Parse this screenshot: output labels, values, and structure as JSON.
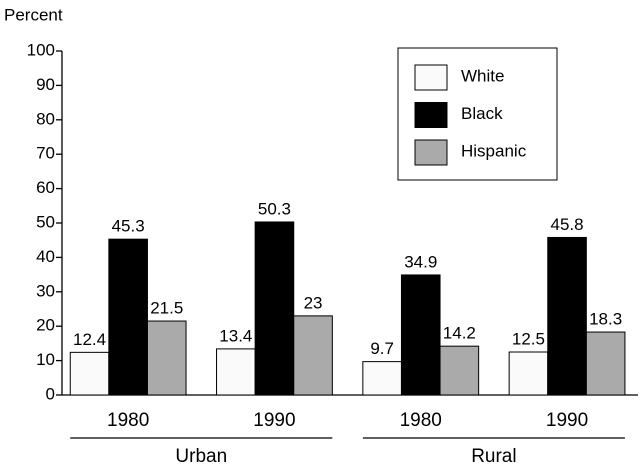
{
  "chart_data": {
    "type": "bar",
    "y_label": "Percent",
    "groups": [
      {
        "name": "Urban",
        "categories": [
          "1980",
          "1990"
        ]
      },
      {
        "name": "Rural",
        "categories": [
          "1980",
          "1990"
        ]
      }
    ],
    "series": [
      {
        "name": "White",
        "color": "#fafafa",
        "values": [
          12.4,
          13.4,
          9.7,
          12.5
        ]
      },
      {
        "name": "Black",
        "color": "#000000",
        "values": [
          45.3,
          50.3,
          34.9,
          45.8
        ]
      },
      {
        "name": "Hispanic",
        "color": "#aaaaaa",
        "values": [
          21.5,
          23,
          14.2,
          18.3
        ]
      }
    ],
    "ylim": [
      0,
      100
    ],
    "yticks": [
      0,
      10,
      20,
      30,
      40,
      50,
      60,
      70,
      80,
      90,
      100
    ],
    "legend": "upper right"
  }
}
